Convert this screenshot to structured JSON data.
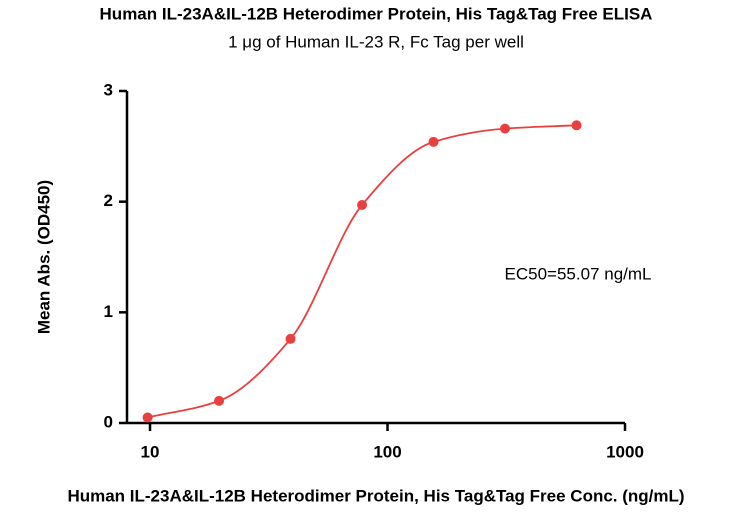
{
  "chart_data": {
    "type": "scatter",
    "title": "Human IL-23A&IL-12B Heterodimer Protein, His Tag&Tag Free ELISA",
    "subtitle": "1 μg of Human IL-23 R, Fc Tag per well",
    "x_label": "Human IL-23A&IL-12B Heterodimer Protein, His Tag&Tag Free Conc. (ng/mL)",
    "y_label": "Mean Abs. (OD450)",
    "annotation": "EC50=55.07 ng/mL",
    "x": [
      9.77,
      19.53,
      39.06,
      78.13,
      156.25,
      312.5,
      625
    ],
    "series": [
      {
        "name": "IL-23",
        "color": "#e84040",
        "values": [
          0.05,
          0.2,
          0.76,
          1.97,
          2.54,
          2.66,
          2.69
        ]
      }
    ],
    "x_log": true,
    "xlim": [
      8,
      1000
    ],
    "xticks": [
      10,
      100,
      1000
    ],
    "ylim": [
      0,
      3
    ],
    "yticks": [
      0,
      1,
      2,
      3
    ]
  }
}
